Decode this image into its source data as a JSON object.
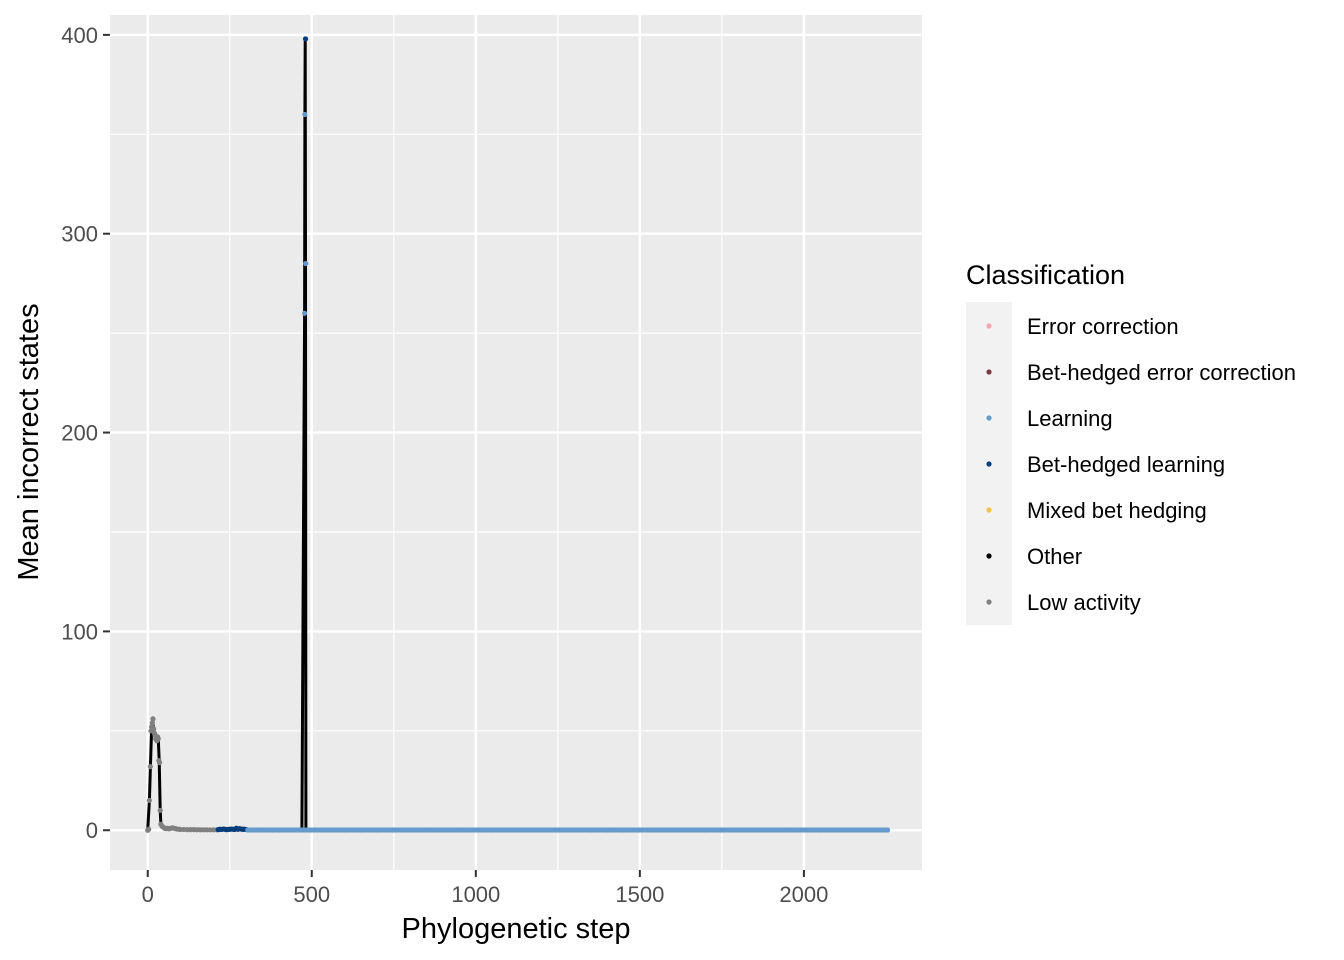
{
  "chart_data": {
    "type": "scatter",
    "xlabel": "Phylogenetic step",
    "ylabel": "Mean incorrect states",
    "xlim": [
      -115,
      2360
    ],
    "ylim": [
      -20,
      410
    ],
    "x_ticks": [
      0,
      500,
      1000,
      1500,
      2000
    ],
    "x_tick_labels": [
      "0",
      "500",
      "1000",
      "1500",
      "2000"
    ],
    "y_ticks": [
      0,
      100,
      200,
      300,
      400
    ],
    "y_tick_labels": [
      "0",
      "100",
      "200",
      "300",
      "400"
    ],
    "grid": true,
    "line_color": "#000000",
    "panel_color": "#ebebeb",
    "legend": {
      "title": "Classification",
      "placement": "right",
      "entries": [
        {
          "name": "Error correction",
          "color": "#f4a6b0"
        },
        {
          "name": "Bet-hedged error correction",
          "color": "#7b3a3f"
        },
        {
          "name": "Learning",
          "color": "#6699cc"
        },
        {
          "name": "Bet-hedged learning",
          "color": "#003d7a"
        },
        {
          "name": "Mixed bet hedging",
          "color": "#f2c14e"
        },
        {
          "name": "Other",
          "color": "#000000"
        },
        {
          "name": "Low activity",
          "color": "#808080"
        }
      ]
    },
    "line": {
      "x": [
        0,
        5,
        8,
        12,
        15,
        18,
        22,
        25,
        28,
        32,
        35,
        38,
        40,
        42,
        45,
        50,
        60,
        80,
        100,
        150,
        200,
        230,
        260,
        290,
        320,
        400,
        470,
        478,
        479,
        480,
        481,
        482,
        484,
        486,
        490,
        600,
        1000,
        1500,
        2000,
        2260
      ],
      "y": [
        0,
        15,
        32,
        52,
        55,
        50,
        48,
        47,
        46,
        47,
        35,
        10,
        3,
        2,
        1.5,
        1,
        0.8,
        1,
        0.5,
        0.6,
        0.3,
        0.8,
        0.5,
        1,
        0.2,
        0.2,
        0.1,
        260,
        360,
        398,
        285,
        0.3,
        0.1,
        0.1,
        0.1,
        0.1,
        0.1,
        0.1,
        0.1,
        0.1
      ]
    },
    "series": [
      {
        "name": "Low activity",
        "x": [
          0,
          3,
          5,
          8,
          10,
          12,
          14,
          16,
          18,
          20,
          22,
          24,
          26,
          28,
          30,
          32,
          34,
          36,
          38,
          40,
          44,
          48,
          52,
          56,
          60,
          65,
          70,
          75,
          80,
          85,
          90,
          95,
          100,
          110,
          120,
          130,
          140,
          150,
          160,
          170,
          180,
          190,
          200,
          210
        ],
        "y": [
          0,
          0.5,
          15,
          32,
          50,
          52,
          54,
          56,
          51,
          49,
          48,
          46,
          47,
          45,
          47,
          46,
          35,
          34,
          10,
          3,
          2,
          1.5,
          1,
          0.8,
          1,
          0.7,
          1,
          1.2,
          1,
          0.8,
          0.6,
          0.5,
          0.4,
          0.4,
          0.3,
          0.3,
          0.3,
          0.2,
          0.2,
          0.2,
          0.2,
          0.2,
          0.2,
          0.2
        ]
      },
      {
        "name": "Bet-hedged learning",
        "x": [
          215,
          220,
          225,
          230,
          235,
          240,
          245,
          250,
          255,
          260,
          265,
          270,
          275,
          280,
          285,
          290,
          295,
          300,
          481
        ],
        "y": [
          0.3,
          0.5,
          0.4,
          0.6,
          0.5,
          0.3,
          0.4,
          0.5,
          0.6,
          0.5,
          0.4,
          1,
          0.5,
          0.8,
          0.6,
          0.4,
          0.5,
          0.4,
          398
        ]
      },
      {
        "name": "Learning",
        "x": [
          305,
          320,
          340,
          360,
          380,
          400,
          420,
          440,
          460,
          478,
          479,
          482,
          500,
          550,
          600,
          650,
          700,
          750,
          800,
          850,
          900,
          950,
          1000,
          1050,
          1100,
          1150,
          1200,
          1250,
          1300,
          1350,
          1400,
          1450,
          1500,
          1550,
          1600,
          1650,
          1700,
          1750,
          1800,
          1850,
          1900,
          1950,
          2000,
          2050,
          2100,
          2150,
          2200,
          2255
        ],
        "y": [
          0.1,
          0.1,
          0.1,
          0.1,
          0.1,
          0.1,
          0.1,
          0.1,
          0.1,
          260,
          360,
          285,
          0.1,
          0.1,
          0.1,
          0.1,
          0.1,
          0.1,
          0.1,
          0.1,
          0.1,
          0.1,
          0.1,
          0.1,
          0.1,
          0.1,
          0.1,
          0.1,
          0.1,
          0.1,
          0.1,
          0.1,
          0.1,
          0.1,
          0.1,
          0.1,
          0.1,
          0.1,
          0.1,
          0.1,
          0.1,
          0.1,
          0.1,
          0.1,
          0.1,
          0.1,
          0.1,
          0.1
        ]
      }
    ]
  }
}
